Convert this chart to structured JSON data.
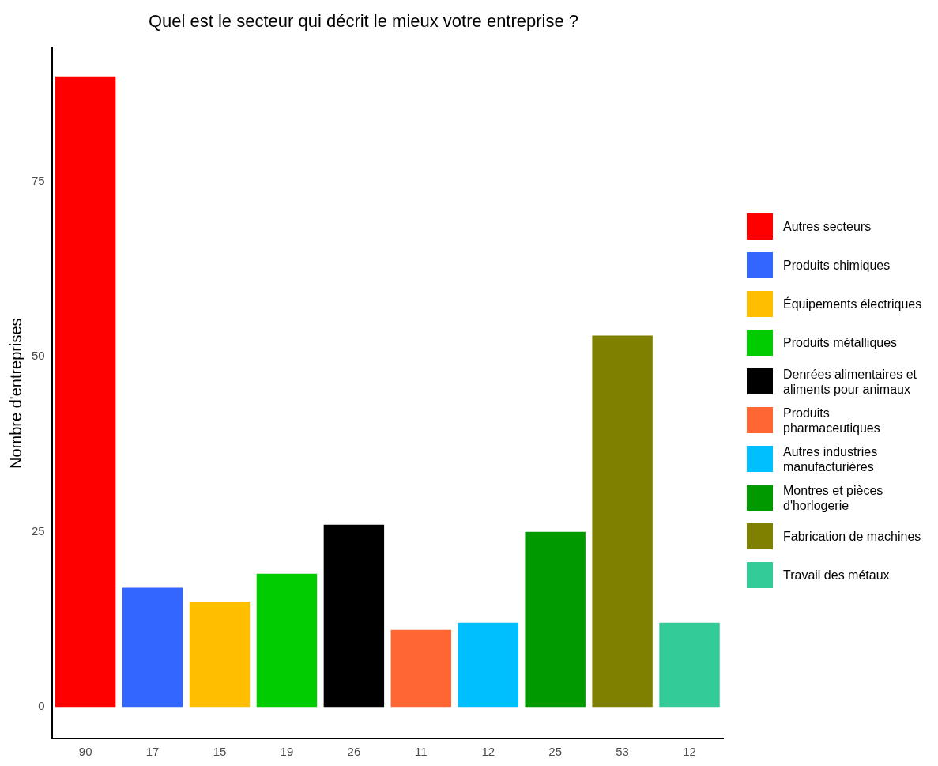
{
  "chart_data": {
    "type": "bar",
    "title": "Quel est le secteur qui décrit le mieux votre entreprise ?",
    "ylabel": "Nombre d'entreprises",
    "categories": [
      "90",
      "17",
      "15",
      "19",
      "26",
      "11",
      "12",
      "25",
      "53",
      "12"
    ],
    "ylim": [
      -4.5,
      94
    ],
    "yticks": [
      0,
      25,
      50,
      75
    ],
    "grid": false,
    "legend": "right",
    "series": [
      {
        "name": "Autres secteurs",
        "color": "#ff0000",
        "values": [
          90,
          null,
          null,
          null,
          null,
          null,
          null,
          null,
          null,
          null
        ]
      },
      {
        "name": "Produits chimiques",
        "color": "#3366ff",
        "values": [
          null,
          17,
          null,
          null,
          null,
          null,
          null,
          null,
          null,
          null
        ]
      },
      {
        "name": "Équipements électriques",
        "color": "#ffbf00",
        "values": [
          null,
          null,
          15,
          null,
          null,
          null,
          null,
          null,
          null,
          null
        ]
      },
      {
        "name": "Produits métalliques",
        "color": "#00cc00",
        "values": [
          null,
          null,
          null,
          19,
          null,
          null,
          null,
          null,
          null,
          null
        ]
      },
      {
        "name": "Denrées alimentaires et aliments pour animaux",
        "color": "#000000",
        "values": [
          null,
          null,
          null,
          null,
          26,
          null,
          null,
          null,
          null,
          null
        ]
      },
      {
        "name": "Produits pharmaceutiques",
        "color": "#ff6633",
        "values": [
          null,
          null,
          null,
          null,
          null,
          11,
          null,
          null,
          null,
          null
        ]
      },
      {
        "name": "Autres industries manufacturières",
        "color": "#00bfff",
        "values": [
          null,
          null,
          null,
          null,
          null,
          null,
          12,
          null,
          null,
          null
        ]
      },
      {
        "name": "Montres et pièces d'horlogerie",
        "color": "#009900",
        "values": [
          null,
          null,
          null,
          null,
          null,
          null,
          null,
          25,
          null,
          null
        ]
      },
      {
        "name": "Fabrication de machines",
        "color": "#808000",
        "values": [
          null,
          null,
          null,
          null,
          null,
          null,
          null,
          null,
          53,
          null
        ]
      },
      {
        "name": "Travail des métaux",
        "color": "#33cc99",
        "values": [
          null,
          null,
          null,
          null,
          null,
          null,
          null,
          null,
          null,
          12
        ]
      }
    ]
  }
}
